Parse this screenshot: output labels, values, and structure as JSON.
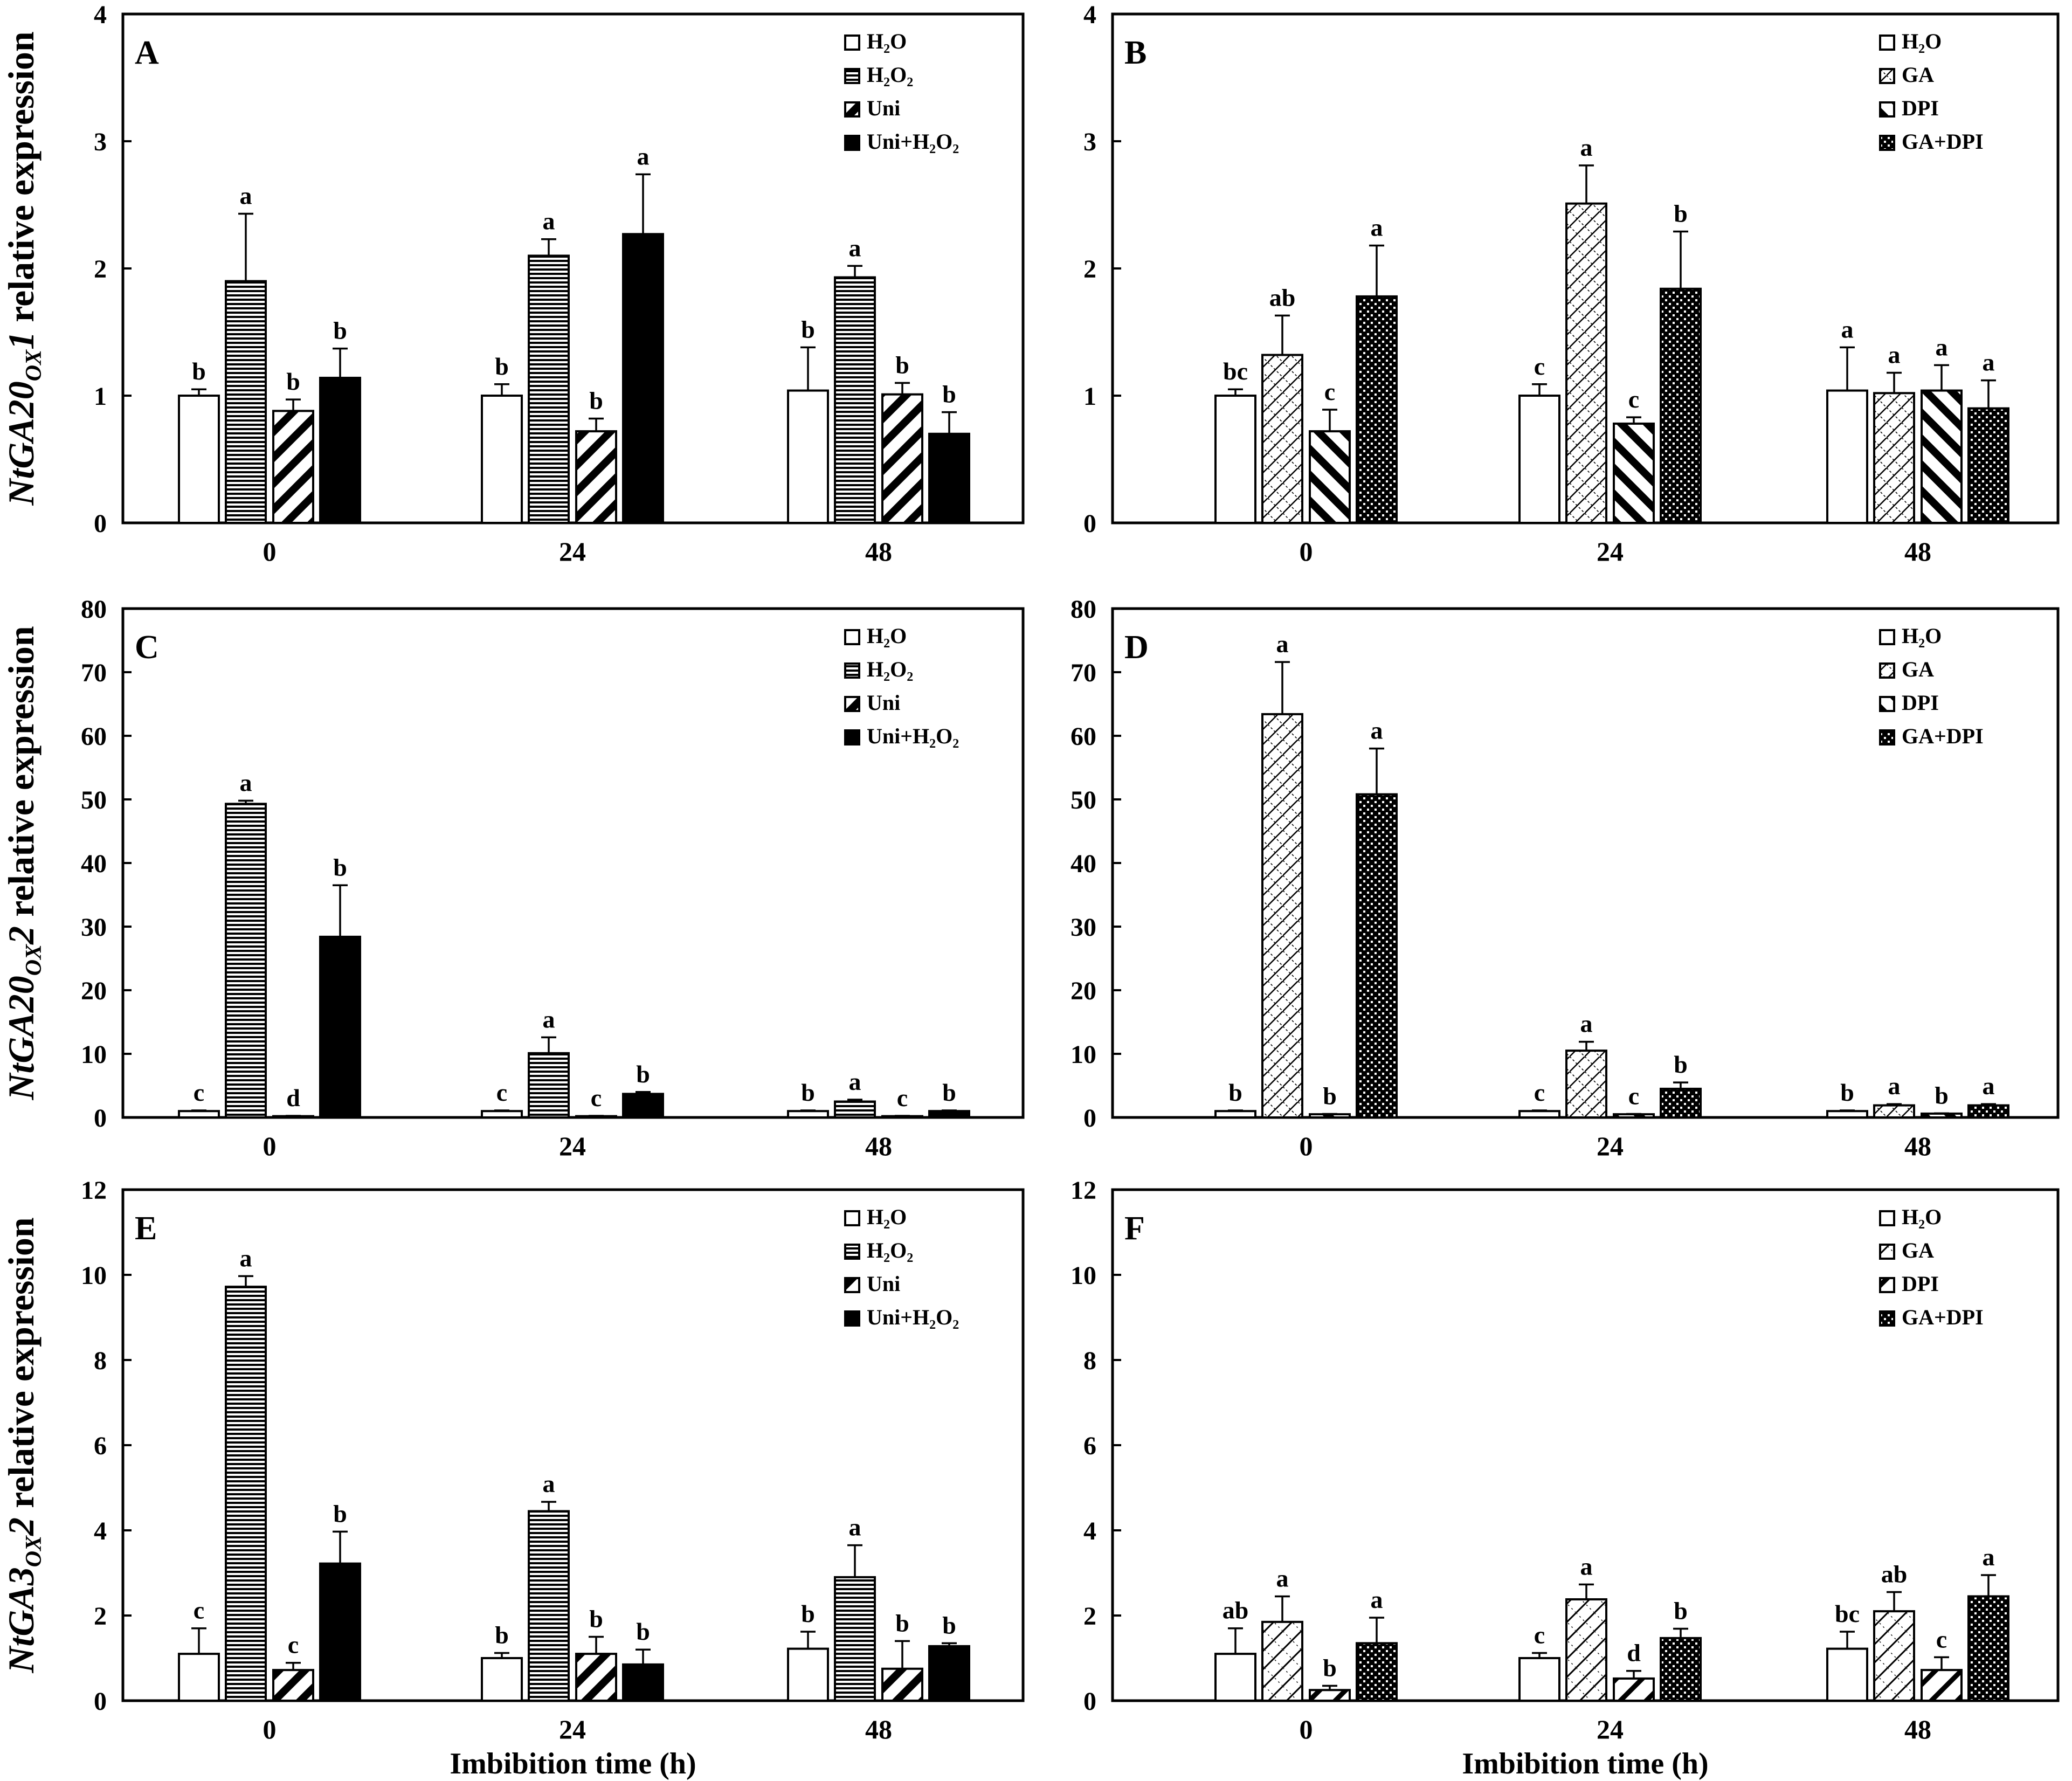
{
  "figure": {
    "ylabel_rows": [
      "NtGA20ox1 relative expression",
      "NtGA20ox2 relative expression",
      "NtGA3ox2 relative expression"
    ],
    "ylabel_parts": [
      {
        "gene": "NtGA20",
        "sub": "OX",
        "num": "1",
        "rest": " relative expression"
      },
      {
        "gene": "NtGA20",
        "sub": "OX",
        "num": "2",
        "rest": " relative expression"
      },
      {
        "gene": "NtGA3",
        "sub": "OX",
        "num": "2",
        "rest": " relative expression"
      }
    ],
    "xlabel": "Imbibition time (h)",
    "colors": {
      "axis": "#000000",
      "fill": "#ffffff",
      "solid": "#000000"
    }
  },
  "chart_data": [
    {
      "type": "bar",
      "panel": "A",
      "categories": [
        "0",
        "24",
        "48"
      ],
      "ylim": [
        0,
        4
      ],
      "yticks": [
        0,
        1,
        2,
        3,
        4
      ],
      "legend": [
        "H₂O",
        "H₂O₂",
        "Uni",
        "Uni+H₂O₂"
      ],
      "series": [
        {
          "name": "H₂O",
          "pattern": "white",
          "values": [
            1.0,
            1.0,
            1.04
          ],
          "errors": [
            0.05,
            0.09,
            0.34
          ],
          "letters": [
            "b",
            "b",
            "b"
          ]
        },
        {
          "name": "H₂O₂",
          "pattern": "hlines",
          "values": [
            1.9,
            2.1,
            1.93
          ],
          "errors": [
            0.53,
            0.13,
            0.09
          ],
          "letters": [
            "a",
            "a",
            "a"
          ]
        },
        {
          "name": "Uni",
          "pattern": "diag",
          "values": [
            0.88,
            0.72,
            1.01
          ],
          "errors": [
            0.09,
            0.1,
            0.09
          ],
          "letters": [
            "b",
            "b",
            "b"
          ]
        },
        {
          "name": "Uni+H₂O₂",
          "pattern": "solid",
          "values": [
            1.14,
            2.27,
            0.7
          ],
          "errors": [
            0.23,
            0.47,
            0.17
          ],
          "letters": [
            "b",
            "a",
            "b"
          ]
        }
      ]
    },
    {
      "type": "bar",
      "panel": "B",
      "categories": [
        "0",
        "24",
        "48"
      ],
      "ylim": [
        0,
        4
      ],
      "yticks": [
        0,
        1,
        2,
        3,
        4
      ],
      "legend": [
        "H₂O",
        "GA",
        "DPI",
        "GA+DPI"
      ],
      "series": [
        {
          "name": "H₂O",
          "pattern": "white",
          "values": [
            1.0,
            1.0,
            1.04
          ],
          "errors": [
            0.05,
            0.09,
            0.34
          ],
          "letters": [
            "bc",
            "c",
            "a"
          ]
        },
        {
          "name": "GA",
          "pattern": "lattice",
          "values": [
            1.32,
            2.51,
            1.02
          ],
          "errors": [
            0.31,
            0.3,
            0.16
          ],
          "letters": [
            "ab",
            "a",
            "a"
          ]
        },
        {
          "name": "DPI",
          "pattern": "backdiag",
          "values": [
            0.72,
            0.78,
            1.04
          ],
          "errors": [
            0.17,
            0.05,
            0.2
          ],
          "letters": [
            "c",
            "c",
            "a"
          ]
        },
        {
          "name": "GA+DPI",
          "pattern": "checker",
          "values": [
            1.78,
            1.84,
            0.9
          ],
          "errors": [
            0.4,
            0.45,
            0.22
          ],
          "letters": [
            "a",
            "b",
            "a"
          ]
        }
      ]
    },
    {
      "type": "bar",
      "panel": "C",
      "categories": [
        "0",
        "24",
        "48"
      ],
      "ylim": [
        0,
        80
      ],
      "yticks": [
        0,
        10,
        20,
        30,
        40,
        50,
        60,
        70,
        80
      ],
      "legend": [
        "H₂O",
        "H₂O₂",
        "Uni",
        "Uni+H₂O₂"
      ],
      "series": [
        {
          "name": "H₂O",
          "pattern": "white",
          "values": [
            1.0,
            1.0,
            1.0
          ],
          "errors": [
            0.1,
            0.1,
            0.1
          ],
          "letters": [
            "c",
            "c",
            "b"
          ]
        },
        {
          "name": "H₂O₂",
          "pattern": "hlines",
          "values": [
            49.3,
            10.1,
            2.5
          ],
          "errors": [
            0.5,
            2.5,
            0.3
          ],
          "letters": [
            "a",
            "a",
            "a"
          ]
        },
        {
          "name": "Uni",
          "pattern": "diag",
          "values": [
            0.2,
            0.2,
            0.2
          ],
          "errors": [
            0.05,
            0.05,
            0.05
          ],
          "letters": [
            "d",
            "c",
            "c"
          ]
        },
        {
          "name": "Uni+H₂O₂",
          "pattern": "solid",
          "values": [
            28.4,
            3.7,
            1.0
          ],
          "errors": [
            8.1,
            0.3,
            0.1
          ],
          "letters": [
            "b",
            "b",
            "b"
          ]
        }
      ]
    },
    {
      "type": "bar",
      "panel": "D",
      "categories": [
        "0",
        "24",
        "48"
      ],
      "ylim": [
        0,
        80
      ],
      "yticks": [
        0,
        10,
        20,
        30,
        40,
        50,
        60,
        70,
        80
      ],
      "legend": [
        "H₂O",
        "GA",
        "DPI",
        "GA+DPI"
      ],
      "series": [
        {
          "name": "H₂O",
          "pattern": "white",
          "values": [
            1.0,
            1.0,
            1.0
          ],
          "errors": [
            0.1,
            0.1,
            0.1
          ],
          "letters": [
            "b",
            "c",
            "b"
          ]
        },
        {
          "name": "GA",
          "pattern": "lattice",
          "values": [
            63.4,
            10.5,
            1.9
          ],
          "errors": [
            8.2,
            1.4,
            0.2
          ],
          "letters": [
            "a",
            "a",
            "a"
          ]
        },
        {
          "name": "DPI",
          "pattern": "backdiag",
          "values": [
            0.5,
            0.5,
            0.6
          ],
          "errors": [
            0.05,
            0.05,
            0.05
          ],
          "letters": [
            "b",
            "c",
            "b"
          ]
        },
        {
          "name": "GA+DPI",
          "pattern": "checker",
          "values": [
            50.8,
            4.5,
            1.9
          ],
          "errors": [
            7.2,
            1.0,
            0.2
          ],
          "letters": [
            "a",
            "b",
            "a"
          ]
        }
      ]
    },
    {
      "type": "bar",
      "panel": "E",
      "categories": [
        "0",
        "24",
        "48"
      ],
      "ylim": [
        0,
        12
      ],
      "yticks": [
        0,
        2,
        4,
        6,
        8,
        10,
        12
      ],
      "legend": [
        "H₂O",
        "H₂O₂",
        "Uni",
        "Uni+H₂O₂"
      ],
      "series": [
        {
          "name": "H₂O",
          "pattern": "white",
          "values": [
            1.1,
            1.0,
            1.22
          ],
          "errors": [
            0.6,
            0.12,
            0.4
          ],
          "letters": [
            "c",
            "b",
            "b"
          ]
        },
        {
          "name": "H₂O₂",
          "pattern": "hlines",
          "values": [
            9.72,
            4.45,
            2.9
          ],
          "errors": [
            0.25,
            0.22,
            0.75
          ],
          "letters": [
            "a",
            "a",
            "a"
          ]
        },
        {
          "name": "Uni",
          "pattern": "diag",
          "values": [
            0.72,
            1.1,
            0.75
          ],
          "errors": [
            0.17,
            0.4,
            0.65
          ],
          "letters": [
            "c",
            "b",
            "b"
          ]
        },
        {
          "name": "Uni+H₂O₂",
          "pattern": "solid",
          "values": [
            3.22,
            0.85,
            1.28
          ],
          "errors": [
            0.75,
            0.35,
            0.07
          ],
          "letters": [
            "b",
            "b",
            "b"
          ]
        }
      ]
    },
    {
      "type": "bar",
      "panel": "F",
      "categories": [
        "0",
        "24",
        "48"
      ],
      "ylim": [
        0,
        12
      ],
      "yticks": [
        0,
        2,
        4,
        6,
        8,
        10,
        12
      ],
      "legend": [
        "H₂O",
        "GA",
        "DPI",
        "GA+DPI"
      ],
      "series": [
        {
          "name": "H₂O",
          "pattern": "white",
          "values": [
            1.1,
            1.0,
            1.22
          ],
          "errors": [
            0.6,
            0.12,
            0.4
          ],
          "letters": [
            "ab",
            "c",
            "bc"
          ]
        },
        {
          "name": "GA",
          "pattern": "sparse",
          "values": [
            1.85,
            2.38,
            2.1
          ],
          "errors": [
            0.6,
            0.35,
            0.45
          ],
          "letters": [
            "a",
            "a",
            "ab"
          ]
        },
        {
          "name": "DPI",
          "pattern": "wdiag",
          "values": [
            0.25,
            0.52,
            0.72
          ],
          "errors": [
            0.1,
            0.18,
            0.3
          ],
          "letters": [
            "b",
            "d",
            "c"
          ]
        },
        {
          "name": "GA+DPI",
          "pattern": "checker",
          "values": [
            1.35,
            1.47,
            2.45
          ],
          "errors": [
            0.6,
            0.22,
            0.5
          ],
          "letters": [
            "a",
            "b",
            "a"
          ]
        }
      ]
    }
  ]
}
